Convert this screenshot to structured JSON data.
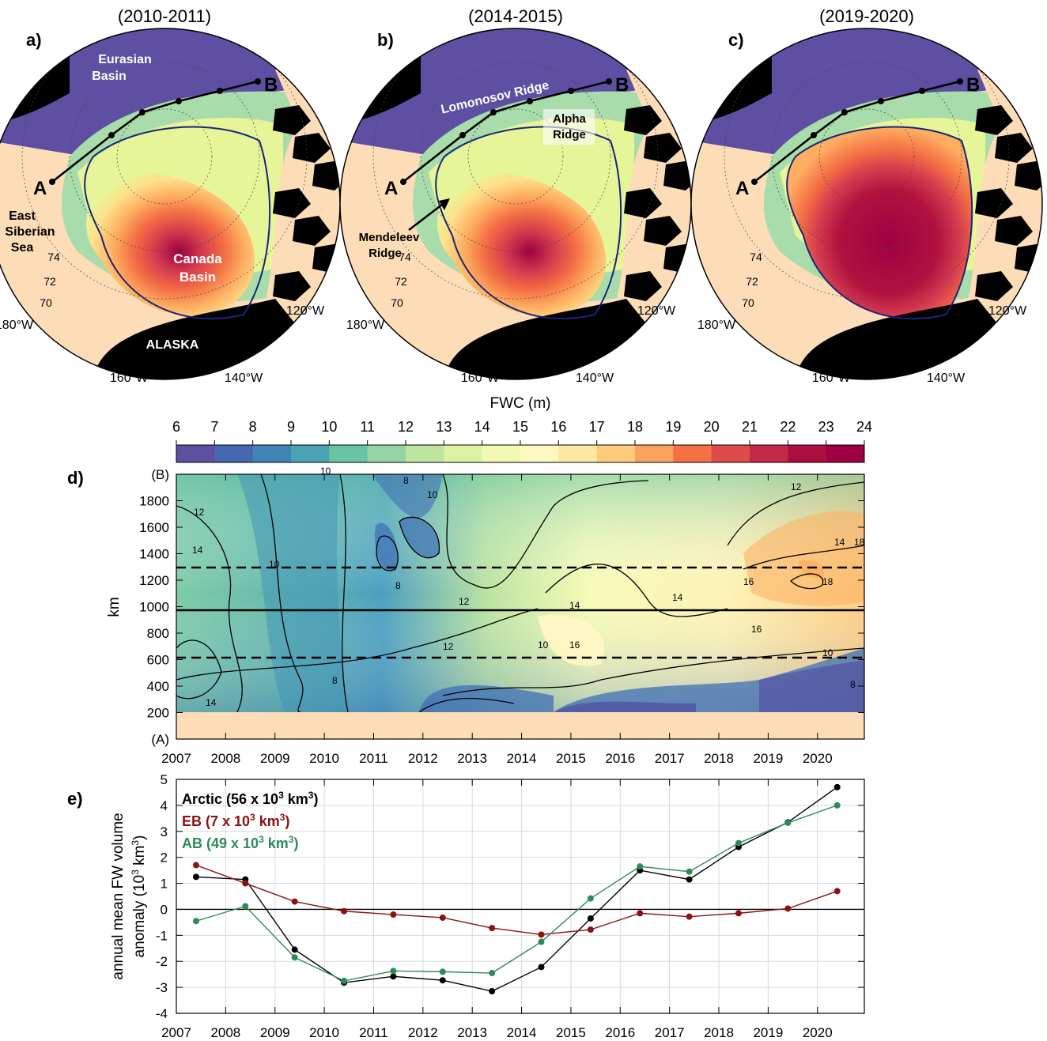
{
  "colorbar": {
    "title": "FWC (m)",
    "ticks": [
      6,
      7,
      8,
      9,
      10,
      11,
      12,
      13,
      14,
      15,
      16,
      17,
      18,
      19,
      20,
      21,
      22,
      23,
      24
    ],
    "colors": [
      "#5e4fa2",
      "#3f6fb5",
      "#3f96b7",
      "#66c2a5",
      "#9fd8a4",
      "#d3ee9d",
      "#f2f9ae",
      "#fff7c4",
      "#fedf8e",
      "#fdae61",
      "#f46d43",
      "#d53e4f",
      "#b2123f",
      "#9e0142"
    ]
  },
  "maps": [
    {
      "panel": "a)",
      "title": "(2010-2011)",
      "labels": [
        "Eurasian Basin",
        "East Siberian Sea",
        "Canada Basin",
        "ALASKA"
      ],
      "point_a": "A",
      "point_b": "B",
      "lon_labels": [
        "180°W",
        "160°W",
        "140°W",
        "120°W"
      ],
      "lat_labels": [
        "74",
        "72",
        "70"
      ]
    },
    {
      "panel": "b)",
      "title": "(2014-2015)",
      "labels": [
        "Lomonosov Ridge",
        "Alpha Ridge",
        "Mendeleev Ridge"
      ],
      "point_a": "A",
      "point_b": "B",
      "lon_labels": [
        "180°W",
        "160°W",
        "140°W",
        "120°W"
      ],
      "lat_labels": [
        "74",
        "72",
        "70"
      ]
    },
    {
      "panel": "c)",
      "title": "(2019-2020)",
      "labels": [],
      "point_a": "A",
      "point_b": "B",
      "lon_labels": [
        "180°W",
        "160°W",
        "140°W",
        "120°W"
      ],
      "lat_labels": [
        "74",
        "72",
        "70"
      ]
    }
  ],
  "panel_d": {
    "label": "d)",
    "ylabel": "km",
    "yticks": [
      "(B)",
      "1800",
      "1600",
      "1400",
      "1200",
      "1000",
      "800",
      "600",
      "400",
      "200",
      "(A)"
    ],
    "xticks": [
      "2007",
      "2008",
      "2009",
      "2010",
      "2011",
      "2012",
      "2013",
      "2014",
      "2015",
      "2016",
      "2017",
      "2018",
      "2019",
      "2020"
    ],
    "contour_labels": [
      "12",
      "10",
      "8",
      "14",
      "16",
      "18"
    ]
  },
  "chart_data": {
    "type": "line",
    "title": "",
    "xlabel": "",
    "ylabel": "annual mean FW volume anomaly (10³ km³)",
    "ylabel_line1": "annual mean FW volume",
    "ylabel_line2": "anomaly (10",
    "ylabel_line2_sup": "3",
    "ylabel_line2_end": " km",
    "ylabel_line2_sup2": "3",
    "ylabel_line2_close": ")",
    "panel_label": "e)",
    "xlim": [
      2007,
      2020.95
    ],
    "ylim": [
      -4,
      5
    ],
    "xticks": [
      2007,
      2008,
      2009,
      2010,
      2011,
      2012,
      2013,
      2014,
      2015,
      2016,
      2017,
      2018,
      2019,
      2020
    ],
    "yticks": [
      -4,
      -3,
      -2,
      -1,
      0,
      1,
      2,
      3,
      4,
      5
    ],
    "grid": true,
    "legend_position": "top-left",
    "x": [
      2007.4,
      2008.4,
      2009.4,
      2010.4,
      2011.4,
      2012.4,
      2013.4,
      2014.4,
      2015.4,
      2016.4,
      2017.4,
      2018.4,
      2019.4,
      2020.4
    ],
    "series": [
      {
        "name": "Arctic (56 x 10³ km³)",
        "legend_main": "Arctic (56 x 10",
        "legend_sup": "3",
        "legend_end": " km",
        "legend_sup2": "3",
        "legend_close": ")",
        "color": "#000000",
        "values": [
          1.25,
          1.15,
          -1.55,
          -2.82,
          -2.58,
          -2.73,
          -3.15,
          -2.22,
          -0.35,
          1.5,
          1.15,
          2.4,
          3.35,
          4.7
        ]
      },
      {
        "name": "EB (7 x 10³ km³)",
        "legend_main": "EB (7 x 10",
        "legend_sup": "3",
        "legend_end": " km",
        "legend_sup2": "3",
        "legend_close": ")",
        "color": "#8b1212",
        "values": [
          1.7,
          1.0,
          0.3,
          -0.07,
          -0.2,
          -0.32,
          -0.72,
          -0.97,
          -0.78,
          -0.15,
          -0.28,
          -0.15,
          0.03,
          0.7
        ]
      },
      {
        "name": "AB (49 x 10³ km³)",
        "legend_main": "AB (49 x 10",
        "legend_sup": "3",
        "legend_end": " km",
        "legend_sup2": "3",
        "legend_close": ")",
        "color": "#2e8b57",
        "values": [
          -0.45,
          0.12,
          -1.85,
          -2.75,
          -2.37,
          -2.4,
          -2.45,
          -1.25,
          0.42,
          1.65,
          1.45,
          2.55,
          3.33,
          4.0
        ]
      }
    ]
  }
}
